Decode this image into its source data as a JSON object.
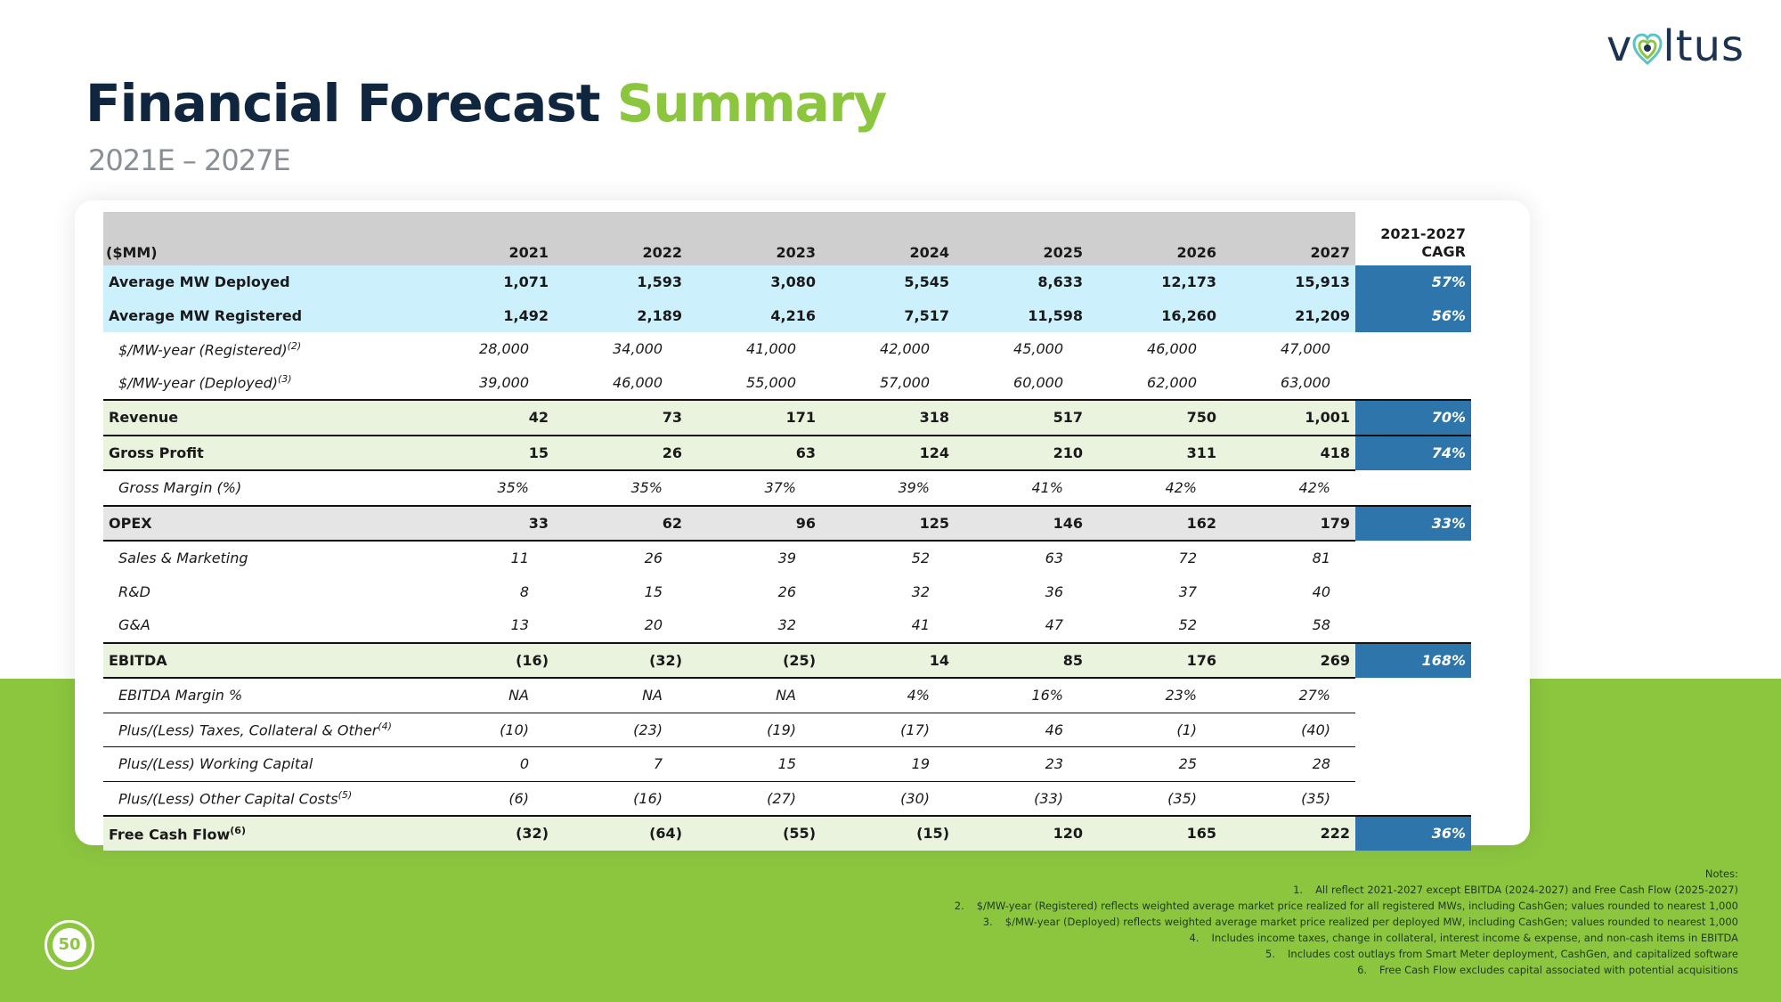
{
  "logo": {
    "text": "voltus",
    "prefix": "v",
    "suffix": "ltus"
  },
  "title": {
    "main": "Financial Forecast",
    "accent": "Summary"
  },
  "subtitle": "2021E – 2027E",
  "colors": {
    "navy": "#10253e",
    "green": "#8cc63f",
    "cagr_blue": "#2e75ab",
    "light_blue": "#cdf1fc",
    "light_green": "#eaf3dd"
  },
  "table": {
    "header": {
      "label": "($MM)",
      "years": [
        "2021",
        "2022",
        "2023",
        "2024",
        "2025",
        "2026",
        "2027"
      ],
      "cagr_line1": "2021-2027",
      "cagr_line2": "CAGR"
    },
    "rows": [
      {
        "label": "Average MW Deployed",
        "sup": "",
        "values": [
          "1,071",
          "1,593",
          "3,080",
          "5,545",
          "8,633",
          "12,173",
          "15,913"
        ],
        "cagr": "57%"
      },
      {
        "label": "Average MW Registered",
        "sup": "",
        "values": [
          "1,492",
          "2,189",
          "4,216",
          "7,517",
          "11,598",
          "16,260",
          "21,209"
        ],
        "cagr": "56%"
      },
      {
        "label": "$/MW-year (Registered)",
        "sup": "(2)",
        "values": [
          "28,000",
          "34,000",
          "41,000",
          "42,000",
          "45,000",
          "46,000",
          "47,000"
        ],
        "cagr": ""
      },
      {
        "label": "$/MW-year (Deployed)",
        "sup": "(3)",
        "values": [
          "39,000",
          "46,000",
          "55,000",
          "57,000",
          "60,000",
          "62,000",
          "63,000"
        ],
        "cagr": ""
      },
      {
        "label": "Revenue",
        "sup": "",
        "values": [
          "42",
          "73",
          "171",
          "318",
          "517",
          "750",
          "1,001"
        ],
        "cagr": "70%"
      },
      {
        "label": "Gross Profit",
        "sup": "",
        "values": [
          "15",
          "26",
          "63",
          "124",
          "210",
          "311",
          "418"
        ],
        "cagr": "74%"
      },
      {
        "label": "Gross Margin (%)",
        "sup": "",
        "values": [
          "35%",
          "35%",
          "37%",
          "39%",
          "41%",
          "42%",
          "42%"
        ],
        "cagr": ""
      },
      {
        "label": "OPEX",
        "sup": "",
        "values": [
          "33",
          "62",
          "96",
          "125",
          "146",
          "162",
          "179"
        ],
        "cagr": "33%"
      },
      {
        "label": "Sales & Marketing",
        "sup": "",
        "values": [
          "11",
          "26",
          "39",
          "52",
          "63",
          "72",
          "81"
        ],
        "cagr": ""
      },
      {
        "label": "R&D",
        "sup": "",
        "values": [
          "8",
          "15",
          "26",
          "32",
          "36",
          "37",
          "40"
        ],
        "cagr": ""
      },
      {
        "label": "G&A",
        "sup": "",
        "values": [
          "13",
          "20",
          "32",
          "41",
          "47",
          "52",
          "58"
        ],
        "cagr": ""
      },
      {
        "label": "EBITDA",
        "sup": "",
        "values": [
          "(16)",
          "(32)",
          "(25)",
          "14",
          "85",
          "176",
          "269"
        ],
        "cagr": "168%"
      },
      {
        "label": "EBITDA Margin %",
        "sup": "",
        "values": [
          "NA",
          "NA",
          "NA",
          "4%",
          "16%",
          "23%",
          "27%"
        ],
        "cagr": ""
      },
      {
        "label": "Plus/(Less) Taxes, Collateral & Other",
        "sup": "(4)",
        "values": [
          "(10)",
          "(23)",
          "(19)",
          "(17)",
          "46",
          "(1)",
          "(40)"
        ],
        "cagr": ""
      },
      {
        "label": "Plus/(Less) Working Capital",
        "sup": "",
        "values": [
          "0",
          "7",
          "15",
          "19",
          "23",
          "25",
          "28"
        ],
        "cagr": ""
      },
      {
        "label": "Plus/(Less) Other Capital Costs",
        "sup": "(5)",
        "values": [
          "(6)",
          "(16)",
          "(27)",
          "(30)",
          "(33)",
          "(35)",
          "(35)"
        ],
        "cagr": ""
      },
      {
        "label": "Free Cash Flow",
        "sup": "(6)",
        "values": [
          "(32)",
          "(64)",
          "(55)",
          "(15)",
          "120",
          "165",
          "222"
        ],
        "cagr": "36%"
      }
    ]
  },
  "notes": {
    "title": "Notes:",
    "items": [
      {
        "n": "1.",
        "text": "All reflect 2021-2027 except EBITDA (2024-2027) and Free Cash Flow (2025-2027)"
      },
      {
        "n": "2.",
        "text": "$/MW-year (Registered) reflects weighted average market price realized for all registered MWs, including CashGen; values rounded to nearest 1,000"
      },
      {
        "n": "3.",
        "text": "$/MW-year (Deployed) reflects weighted average market price realized per deployed MW, including CashGen; values rounded to nearest 1,000"
      },
      {
        "n": "4.",
        "text": "Includes income taxes, change in collateral, interest income & expense, and non-cash items in EBITDA"
      },
      {
        "n": "5.",
        "text": "Includes cost outlays from Smart Meter deployment, CashGen, and capitalized software"
      },
      {
        "n": "6.",
        "text": "Free Cash Flow excludes capital associated  with potential acquisitions"
      }
    ]
  },
  "page_number": "50"
}
